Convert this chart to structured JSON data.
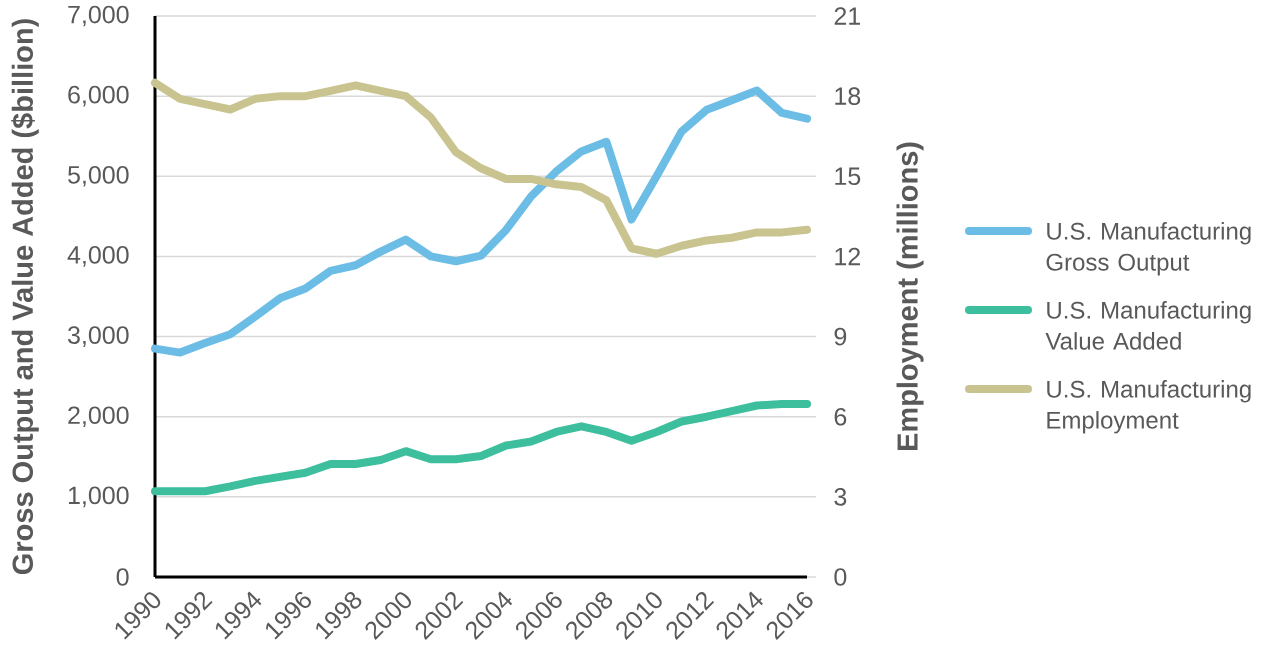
{
  "chart_data": {
    "type": "line",
    "ylabel": "Gross Output and Value Added ($billion)",
    "y2label": "Employment (millions)",
    "x": [
      1990,
      1991,
      1992,
      1993,
      1994,
      1995,
      1996,
      1997,
      1998,
      1999,
      2000,
      2001,
      2002,
      2003,
      2004,
      2005,
      2006,
      2007,
      2008,
      2009,
      2010,
      2011,
      2012,
      2013,
      2014,
      2015,
      2016
    ],
    "xlim": [
      1990,
      2016
    ],
    "xticks": [
      1990,
      1992,
      1994,
      1996,
      1998,
      2000,
      2002,
      2004,
      2006,
      2008,
      2010,
      2012,
      2014,
      2016
    ],
    "ylim": [
      0,
      7000
    ],
    "yticks": [
      0,
      {
        "value": 1000,
        "label": "1,000"
      },
      {
        "value": 2000,
        "label": "2,000"
      },
      {
        "value": 3000,
        "label": "3,000"
      },
      {
        "value": 4000,
        "label": "4,000"
      },
      {
        "value": 5000,
        "label": "5,000"
      },
      {
        "value": 6000,
        "label": "6,000"
      },
      {
        "value": 7000,
        "label": "7,000"
      }
    ],
    "y2lim": [
      0,
      21
    ],
    "y2ticks": [
      0,
      3,
      6,
      9,
      12,
      15,
      18,
      21
    ],
    "grid": "y",
    "legend": "right",
    "marker": "none",
    "line_style": "solid",
    "series": [
      {
        "name": "U.S. Manufacturing Gross Output",
        "color": "#6cbde6",
        "values": [
          2850,
          2800,
          2920,
          3030,
          3250,
          3480,
          3600,
          3820,
          3890,
          4060,
          4210,
          4000,
          3940,
          4010,
          4330,
          4750,
          5060,
          5310,
          5430,
          4460,
          5000,
          5560,
          5830,
          5950,
          6070,
          5790,
          5720
        ]
      },
      {
        "name": "U.S. Manufacturing Value Added",
        "color": "#3dbf9e",
        "values": [
          1070,
          1070,
          1070,
          1130,
          1200,
          1250,
          1300,
          1410,
          1410,
          1460,
          1570,
          1470,
          1470,
          1510,
          1640,
          1690,
          1810,
          1880,
          1810,
          1700,
          1810,
          1940,
          2000,
          2070,
          2140,
          2160,
          2160
        ]
      },
      {
        "name": "U.S. Manufacturing Employment",
        "color": "#c9c48f",
        "axis": "y2",
        "values": [
          18.5,
          17.9,
          17.7,
          17.5,
          17.9,
          18.0,
          18.0,
          18.2,
          18.4,
          18.2,
          18.0,
          17.2,
          15.9,
          15.3,
          14.9,
          14.9,
          14.7,
          14.6,
          14.1,
          12.3,
          12.1,
          12.4,
          12.6,
          12.7,
          12.9,
          12.9,
          13.0
        ]
      }
    ]
  }
}
